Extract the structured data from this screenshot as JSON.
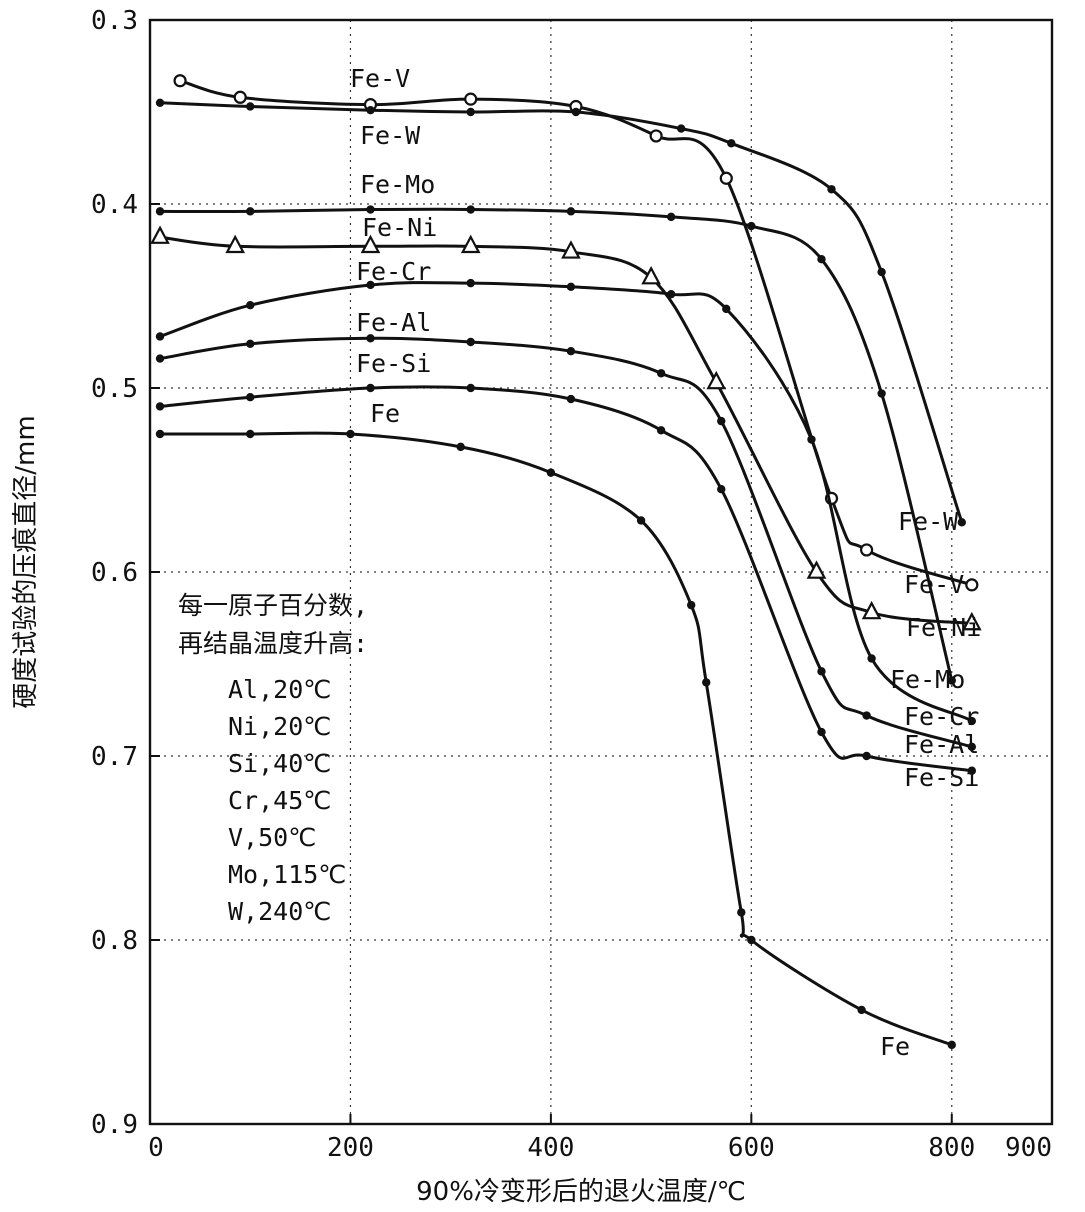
{
  "chart_data": {
    "type": "line",
    "xlabel": "90%冷变形后的退火温度/℃",
    "ylabel": "硬度试验的压痕直径/mm",
    "xlim": [
      0,
      900
    ],
    "ylim": [
      0.3,
      0.9
    ],
    "y_inverted": true,
    "grid": "dotted",
    "x_ticks": [
      "0",
      "200",
      "400",
      "600",
      "800",
      "900"
    ],
    "x_tick_values": [
      0,
      200,
      400,
      600,
      800,
      900
    ],
    "y_ticks": [
      "0.3",
      "0.4",
      "0.5",
      "0.6",
      "0.7",
      "0.8",
      "0.9"
    ],
    "y_tick_values": [
      0.3,
      0.4,
      0.5,
      0.6,
      0.7,
      0.8,
      0.9
    ],
    "series": [
      {
        "name": "Fe-V",
        "marker": "open-circle",
        "x": [
          30,
          90,
          220,
          320,
          425,
          505,
          575,
          680,
          715,
          820
        ],
        "y": [
          0.333,
          0.342,
          0.346,
          0.343,
          0.347,
          0.363,
          0.386,
          0.56,
          0.588,
          0.607
        ]
      },
      {
        "name": "Fe-W",
        "marker": "dot",
        "x": [
          10,
          100,
          220,
          320,
          425,
          530,
          580,
          680,
          730,
          810
        ],
        "y": [
          0.345,
          0.347,
          0.349,
          0.35,
          0.35,
          0.359,
          0.367,
          0.392,
          0.437,
          0.573
        ]
      },
      {
        "name": "Fe-Mo",
        "marker": "dot",
        "x": [
          10,
          100,
          220,
          320,
          420,
          520,
          600,
          670,
          730,
          800
        ],
        "y": [
          0.404,
          0.404,
          0.403,
          0.403,
          0.404,
          0.407,
          0.412,
          0.43,
          0.503,
          0.659
        ]
      },
      {
        "name": "Fe-Ni",
        "marker": "triangle",
        "x": [
          10,
          85,
          220,
          320,
          420,
          500,
          565,
          665,
          720,
          820
        ],
        "y": [
          0.418,
          0.423,
          0.423,
          0.423,
          0.426,
          0.44,
          0.497,
          0.6,
          0.622,
          0.628
        ]
      },
      {
        "name": "Fe-Cr",
        "marker": "dot",
        "x": [
          10,
          100,
          220,
          320,
          420,
          520,
          575,
          660,
          720,
          820
        ],
        "y": [
          0.472,
          0.455,
          0.444,
          0.443,
          0.445,
          0.449,
          0.457,
          0.528,
          0.647,
          0.681
        ]
      },
      {
        "name": "Fe-Al",
        "marker": "dot",
        "x": [
          10,
          100,
          220,
          320,
          420,
          510,
          570,
          670,
          715,
          820
        ],
        "y": [
          0.484,
          0.476,
          0.473,
          0.475,
          0.48,
          0.492,
          0.518,
          0.654,
          0.678,
          0.695
        ]
      },
      {
        "name": "Fe-Si",
        "marker": "dot",
        "x": [
          10,
          100,
          220,
          320,
          420,
          510,
          570,
          670,
          715,
          820
        ],
        "y": [
          0.51,
          0.505,
          0.5,
          0.5,
          0.506,
          0.523,
          0.555,
          0.687,
          0.7,
          0.708
        ]
      },
      {
        "name": "Fe",
        "marker": "dot",
        "x": [
          10,
          100,
          200,
          310,
          400,
          490,
          540,
          555,
          590,
          600,
          710,
          800
        ],
        "y": [
          0.525,
          0.525,
          0.525,
          0.532,
          0.546,
          0.572,
          0.618,
          0.66,
          0.785,
          0.8,
          0.838,
          0.857
        ]
      }
    ],
    "annotation": {
      "title_lines": [
        "每一原子百分数,",
        "再结晶温度升高:"
      ],
      "items": [
        "Al,20℃",
        "Ni,20℃",
        "Si,40℃",
        "Cr,45℃",
        "V,50℃",
        "Mo,115℃",
        "W,240℃"
      ]
    }
  }
}
